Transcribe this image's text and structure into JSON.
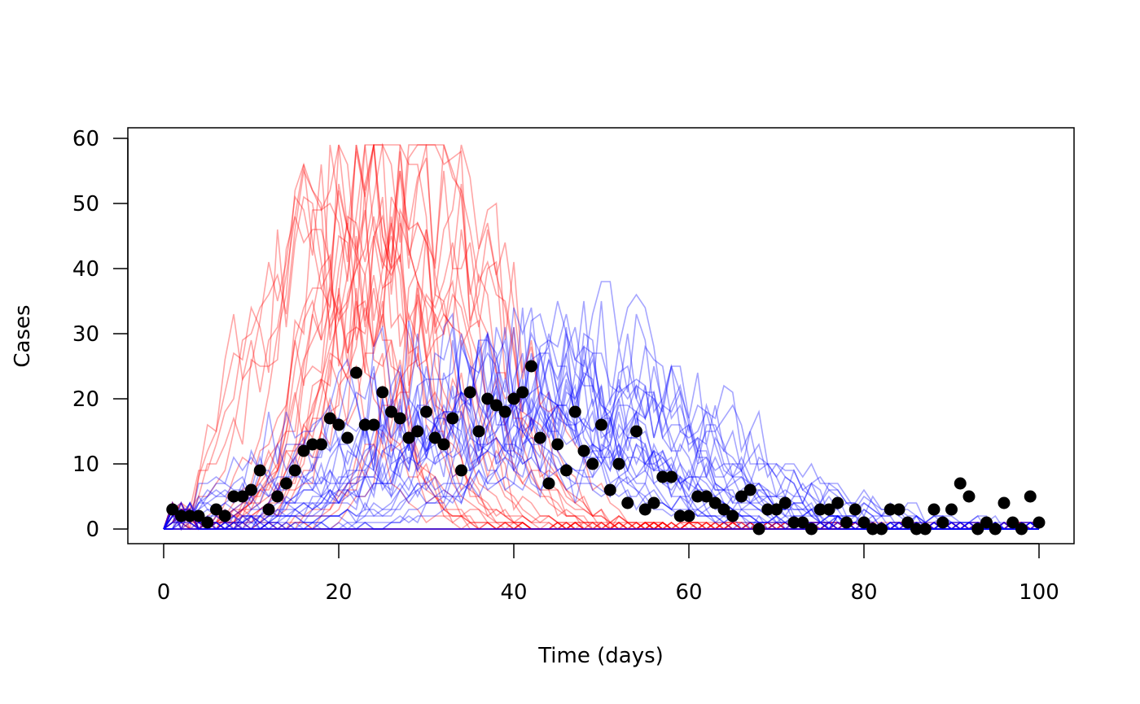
{
  "chart_data": {
    "type": "line",
    "title": "",
    "xlabel": "Time (days)",
    "ylabel": "Cases",
    "xlim": [
      0,
      100
    ],
    "ylim": [
      0,
      60
    ],
    "x_ticks": [
      0,
      20,
      40,
      60,
      80,
      100
    ],
    "y_ticks": [
      0,
      10,
      20,
      30,
      40,
      50,
      60
    ],
    "x_tick_labels": [
      "0",
      "20",
      "40",
      "60",
      "80",
      "100"
    ],
    "y_tick_labels": [
      "0",
      "10",
      "20",
      "30",
      "40",
      "50",
      "60"
    ],
    "grid": false,
    "legend": "none",
    "colors": {
      "series_a": "#ff0000",
      "series_b": "#0000ff",
      "observed": "#000000"
    },
    "simulations": {
      "red_ensemble": {
        "count": 30,
        "peak_day_range": [
          16,
          36
        ],
        "peak_height_range": [
          35,
          59
        ],
        "spread_range": [
          5,
          8
        ],
        "noise": 0.3
      },
      "blue_ensemble": {
        "count": 30,
        "peak_day_range": [
          30,
          52
        ],
        "peak_height_range": [
          10,
          30
        ],
        "spread_range": [
          9,
          18
        ],
        "noise": 0.35
      }
    },
    "series": [
      {
        "marker": "point",
        "x": [
          1,
          2,
          3,
          4,
          5,
          6,
          7,
          8,
          9,
          10,
          11,
          12,
          13,
          14,
          15,
          16,
          17,
          18,
          19,
          20,
          21,
          22,
          23,
          24,
          25,
          26,
          27,
          28,
          29,
          30,
          31,
          32,
          33,
          34,
          35,
          36,
          37,
          38,
          39,
          40,
          41,
          42,
          43,
          44,
          45,
          46,
          47,
          48,
          49,
          50,
          51,
          52,
          53,
          54,
          55,
          56,
          57,
          58,
          59,
          60,
          61,
          62,
          63,
          64,
          65,
          66,
          67,
          68,
          69,
          70,
          71,
          72,
          73,
          74,
          75,
          76,
          77,
          78,
          79,
          80,
          81,
          82,
          83,
          84,
          85,
          86,
          87,
          88,
          89,
          90,
          91,
          92,
          93,
          94,
          95,
          96,
          97,
          98,
          99,
          100
        ],
        "values": [
          3,
          2,
          2,
          2,
          1,
          3,
          2,
          5,
          5,
          6,
          9,
          3,
          5,
          7,
          9,
          12,
          13,
          13,
          17,
          16,
          14,
          24,
          16,
          16,
          21,
          18,
          17,
          14,
          15,
          18,
          14,
          13,
          17,
          9,
          21,
          15,
          20,
          19,
          18,
          20,
          21,
          25,
          14,
          7,
          13,
          9,
          18,
          12,
          10,
          16,
          6,
          10,
          4,
          15,
          3,
          4,
          8,
          8,
          2,
          2,
          5,
          5,
          4,
          3,
          2,
          5,
          6,
          0,
          3,
          3,
          4,
          1,
          1,
          0,
          3,
          3,
          4,
          1,
          3,
          1,
          0,
          0,
          3,
          3,
          1,
          0,
          0,
          3,
          1,
          3,
          7,
          5,
          0,
          1,
          0,
          4,
          1,
          0,
          5,
          1
        ]
      }
    ]
  }
}
